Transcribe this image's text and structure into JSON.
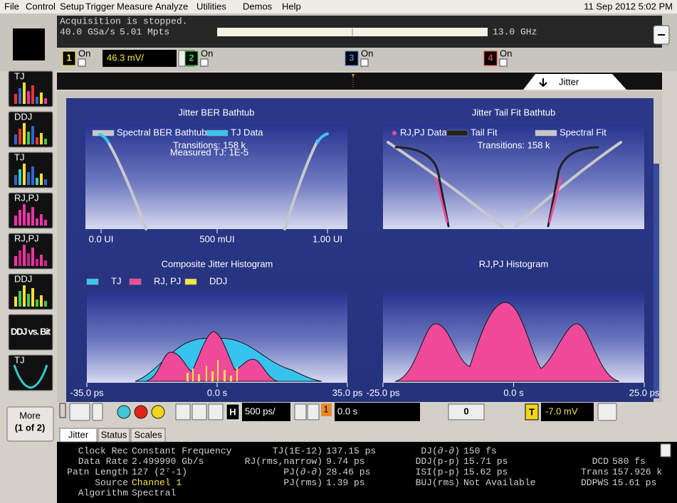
{
  "menu": [
    "File",
    "Control",
    "Setup",
    "Trigger",
    "Measure",
    "Analyze",
    "Utilities",
    "Demos",
    "Help"
  ],
  "datetime": "11 Sep 2012  5:02 PM",
  "status": {
    "line1": "Acquisition is stopped.",
    "rate": "40.0 GSa/s",
    "points": "5.01 Mpts",
    "bandwidth": "13.0 GHz"
  },
  "channels": [
    {
      "number": "1",
      "state": "On",
      "scale": "46.3 mV/"
    },
    {
      "number": "2",
      "state": "On"
    },
    {
      "number": "3",
      "state": "On"
    },
    {
      "number": "4",
      "state": "On"
    }
  ],
  "timeline_tab": "Jitter",
  "sidebar": [
    "TJ",
    "DDJ",
    "TJ",
    "RJ,PJ",
    "RJ,PJ",
    "DDJ",
    "DDJ vs. Bit",
    "TJ"
  ],
  "more": [
    "More",
    "(1 of 2)"
  ],
  "plots": [
    {
      "title": "Jitter BER Bathtub",
      "legend": [
        "Spectral BER Bathtub",
        "TJ Data"
      ],
      "annotation": [
        "Transitions: 158 k",
        "Measured TJ: 1E-5"
      ],
      "x_labels": [
        "0.0 UI",
        "500 mUI",
        "1.00 UI"
      ]
    },
    {
      "title": "Jitter Tail Fit Bathtub",
      "legend": [
        "RJ,PJ Data",
        "Tail Fit",
        "Spectral Fit"
      ],
      "annotation": [
        "Transitions: 158 k"
      ]
    },
    {
      "title": "Composite Jitter Histogram",
      "legend": [
        "TJ",
        "RJ, PJ",
        "DDJ"
      ],
      "x_labels": [
        "-35.0 ps",
        "0.0 s",
        "35.0 ps"
      ]
    },
    {
      "title": "RJ,PJ Histogram",
      "x_labels": [
        "-25.0 ps",
        "0.0 s",
        "25.0 ps"
      ]
    }
  ],
  "toolbar": {
    "horizontal": "H",
    "timebase": "500 ps/",
    "trigger_channel": "1",
    "delay": "0.0 s",
    "nav": "0",
    "trigger": "T",
    "trigger_level": "-7.0 mV"
  },
  "tabs": [
    "Jitter",
    "Status",
    "Scales"
  ],
  "measurements": [
    [
      [
        "Clock Rec",
        "Constant Frequency"
      ],
      [
        "Data Rate",
        "2.499990 Gb/s"
      ],
      [
        "Patn Length",
        "127 (2⁷-1)"
      ],
      [
        "Source",
        "Channel 1"
      ],
      [
        "Algorithm",
        "Spectral"
      ]
    ],
    [
      [
        "TJ(1E-12)",
        "137.15 ps"
      ],
      [
        "RJ(rms,narrow)",
        "9.74 ps"
      ],
      [
        "PJ(∂-∂)",
        "28.46 ps"
      ],
      [
        "PJ(rms)",
        "1.39 ps"
      ]
    ],
    [
      [
        "DJ(∂-∂)",
        "150 fs"
      ],
      [
        "DDJ(p-p)",
        "15.71 ps"
      ],
      [
        "ISI(p-p)",
        "15.62 ps"
      ],
      [
        "BUJ(rms)",
        "Not Available"
      ]
    ],
    [
      [
        "DCD",
        "580 fs"
      ],
      [
        "Trans",
        "157.926 k"
      ],
      [
        "DDPWS",
        "15.61 ps"
      ]
    ]
  ]
}
